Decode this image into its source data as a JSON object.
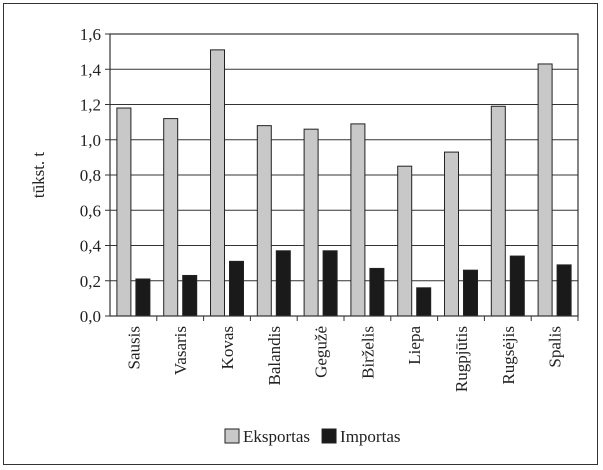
{
  "chart_data": {
    "type": "bar",
    "title": "",
    "xlabel": "",
    "ylabel": "tūkst. t",
    "ylim": [
      0,
      1.6
    ],
    "yticks": [
      0.0,
      0.2,
      0.4,
      0.6,
      0.8,
      1.0,
      1.2,
      1.4,
      1.6
    ],
    "ytick_labels": [
      "0,0",
      "0,2",
      "0,4",
      "0,6",
      "0,8",
      "1,0",
      "1,2",
      "1,4",
      "1,6"
    ],
    "grid": "horizontal",
    "legend": "bottom",
    "categories": [
      "Sausis",
      "Vasaris",
      "Kovas",
      "Balandis",
      "Gegužė",
      "Birželis",
      "Liepa",
      "Rugpjūtis",
      "Rugsėjis",
      "Spalis"
    ],
    "series": [
      {
        "name": "Eksportas",
        "color": "#c8c8c8",
        "values": [
          1.18,
          1.12,
          1.51,
          1.08,
          1.06,
          1.09,
          0.85,
          0.93,
          1.19,
          1.43
        ]
      },
      {
        "name": "Importas",
        "color": "#1a1a1a",
        "values": [
          0.21,
          0.23,
          0.31,
          0.37,
          0.37,
          0.27,
          0.16,
          0.26,
          0.34,
          0.29
        ]
      }
    ]
  }
}
